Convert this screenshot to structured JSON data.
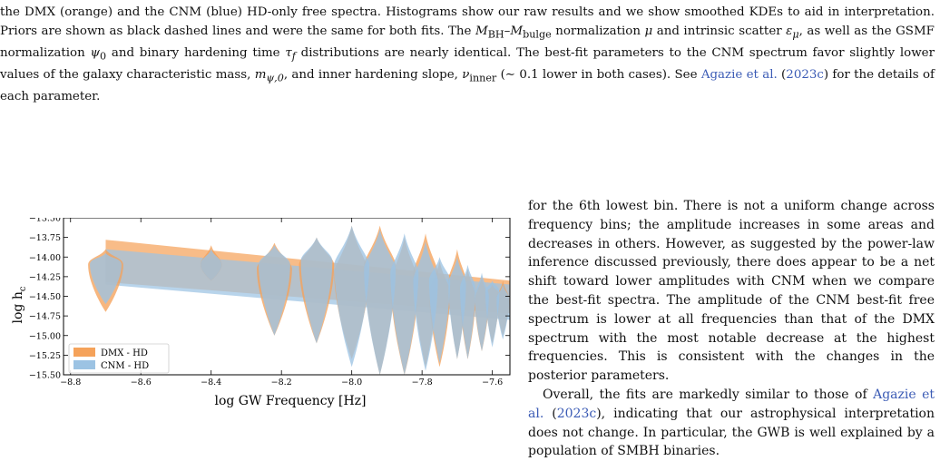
{
  "caption": {
    "l1": "the DMX (orange) and the CNM (blue) HD-only free spectra. Histograms show our raw results and we show smoothed KDEs to",
    "l2a": "aid in interpretation. Priors are shown as black dashed lines and were the same for both fits. The ",
    "l2b": "M",
    "l2c": "BH",
    "l2d": "–",
    "l2e": "M",
    "l2f": "bulge",
    "l2g": " normalization ",
    "l2h": "μ",
    "l3a": "and intrinsic scatter ",
    "l3b": "ε",
    "l3c": "μ",
    "l3d": ", as well as the GSMF normalization ",
    "l3e": "ψ",
    "l3f": "0",
    "l3g": " and binary hardening time ",
    "l3h": "τ",
    "l3i": "f",
    "l3j": " distributions are nearly identical.",
    "l4": "The best-fit parameters to the CNM spectrum favor slightly lower values of the galaxy characteristic mass, ",
    "l4m": "m",
    "l4sub": "ψ,0",
    "l4end": ", and inner",
    "l5a": "hardening slope, ",
    "l5b": "ν",
    "l5c": "inner",
    "l5d": " (∼ 0.1 lower in both cases). See ",
    "l5cite": "Agazie et al.",
    "l5e": " (",
    "l5year": "2023c",
    "l5f": ") for the details of each parameter."
  },
  "body_text": {
    "p1": "for the 6th lowest bin. There is not a uniform change across frequency bins; the amplitude increases in some areas and decreases in others. However, as suggested by the power-law inference discussed previously, there does appear to be a net shift toward lower amplitudes with CNM when we compare the best-fit spectra. The amplitude of the CNM best-fit free spectrum is lower at all frequencies than that of the DMX spectrum with the most notable decrease at the highest frequencies. This is consistent with the changes in the posterior parameters.",
    "p2a": "Overall, the fits are markedly similar to those of ",
    "p2cite": "Agazie et al.",
    "p2b": " (",
    "p2year": "2023c",
    "p2c": "), indicating that our astrophysical interpretation does not change. In particular, the GWB is well explained by a population of SMBH binaries."
  },
  "chart_data": {
    "type": "violin",
    "xlabel": "log GW Frequency [Hz]",
    "ylabel": "log h",
    "ylabel_sub": "c",
    "xlim": [
      -8.82,
      -7.55
    ],
    "ylim": [
      -15.5,
      -13.5
    ],
    "xticks": [
      -8.8,
      -8.6,
      -8.4,
      -8.2,
      -8.0,
      -7.8,
      -7.6
    ],
    "xtick_labels": [
      "−8.8",
      "−8.6",
      "−8.4",
      "−8.2",
      "−8.0",
      "−7.8",
      "−7.6"
    ],
    "yticks": [
      -15.5,
      -15.25,
      -15.0,
      -14.75,
      -14.5,
      -14.25,
      -14.0,
      -13.75,
      -13.5
    ],
    "ytick_labels": [
      "−15.50",
      "−15.25",
      "−15.00",
      "−14.75",
      "−14.50",
      "−14.25",
      "−14.00",
      "−13.75",
      "−13.50"
    ],
    "bin_freqs": [
      -8.7,
      -8.4,
      -8.22,
      -8.1,
      -8.0,
      -7.92,
      -7.85,
      -7.79,
      -7.75,
      -7.7,
      -7.67,
      -7.63,
      -7.6,
      -7.57
    ],
    "series": [
      {
        "name": "DMX - HD",
        "color": "#f5a25a",
        "band": {
          "x": [
            -8.7,
            -7.55
          ],
          "upper": [
            -13.78,
            -14.3
          ],
          "lower": [
            -14.32,
            -14.72
          ]
        },
        "violins": [
          {
            "center": -14.1,
            "top": -13.9,
            "bottom": -14.7,
            "width": 0.05
          },
          {
            "center": -14.1,
            "top": -13.85,
            "bottom": -14.3,
            "width": 0.03
          },
          {
            "center": -14.15,
            "top": -13.82,
            "bottom": -15.0,
            "width": 0.05
          },
          {
            "center": -14.1,
            "top": -13.75,
            "bottom": -15.1,
            "width": 0.05
          },
          {
            "center": -14.2,
            "top": -13.6,
            "bottom": -15.3,
            "width": 0.05
          },
          {
            "center": -14.1,
            "top": -13.6,
            "bottom": -15.5,
            "width": 0.045
          },
          {
            "center": -14.3,
            "top": -13.75,
            "bottom": -15.5,
            "width": 0.04
          },
          {
            "center": -14.2,
            "top": -13.7,
            "bottom": -15.4,
            "width": 0.035
          },
          {
            "center": -14.45,
            "top": -14.05,
            "bottom": -15.4,
            "width": 0.03
          },
          {
            "center": -14.3,
            "top": -13.9,
            "bottom": -15.3,
            "width": 0.025
          },
          {
            "center": -14.5,
            "top": -14.15,
            "bottom": -15.3,
            "width": 0.022
          },
          {
            "center": -14.55,
            "top": -14.25,
            "bottom": -15.2,
            "width": 0.02
          },
          {
            "center": -14.5,
            "top": -14.35,
            "bottom": -15.1,
            "width": 0.02
          },
          {
            "center": -14.55,
            "top": -14.3,
            "bottom": -15.0,
            "width": 0.018
          }
        ]
      },
      {
        "name": "CNM - HD",
        "color": "#9cc3e3",
        "band": {
          "x": [
            -8.7,
            -7.55
          ],
          "upper": [
            -13.9,
            -14.35
          ],
          "lower": [
            -14.35,
            -14.8
          ]
        },
        "violins": [
          {
            "center": -14.1,
            "top": -13.95,
            "bottom": -14.6,
            "width": 0.045
          },
          {
            "center": -14.1,
            "top": -13.9,
            "bottom": -14.3,
            "width": 0.03
          },
          {
            "center": -14.1,
            "top": -13.85,
            "bottom": -15.0,
            "width": 0.045
          },
          {
            "center": -14.05,
            "top": -13.75,
            "bottom": -15.1,
            "width": 0.045
          },
          {
            "center": -14.1,
            "top": -13.6,
            "bottom": -15.4,
            "width": 0.05
          },
          {
            "center": -14.15,
            "top": -13.65,
            "bottom": -15.5,
            "width": 0.045
          },
          {
            "center": -14.2,
            "top": -13.7,
            "bottom": -15.5,
            "width": 0.04
          },
          {
            "center": -14.3,
            "top": -13.8,
            "bottom": -15.45,
            "width": 0.035
          },
          {
            "center": -14.3,
            "top": -14.0,
            "bottom": -15.35,
            "width": 0.03
          },
          {
            "center": -14.35,
            "top": -14.0,
            "bottom": -15.3,
            "width": 0.025
          },
          {
            "center": -14.4,
            "top": -14.1,
            "bottom": -15.3,
            "width": 0.022
          },
          {
            "center": -14.5,
            "top": -14.2,
            "bottom": -15.2,
            "width": 0.02
          },
          {
            "center": -14.45,
            "top": -14.3,
            "bottom": -15.15,
            "width": 0.02
          },
          {
            "center": -14.55,
            "top": -14.35,
            "bottom": -15.05,
            "width": 0.018
          }
        ]
      }
    ],
    "legend": {
      "placement": "lower-left",
      "entries": [
        "DMX - HD",
        "CNM - HD"
      ]
    }
  }
}
